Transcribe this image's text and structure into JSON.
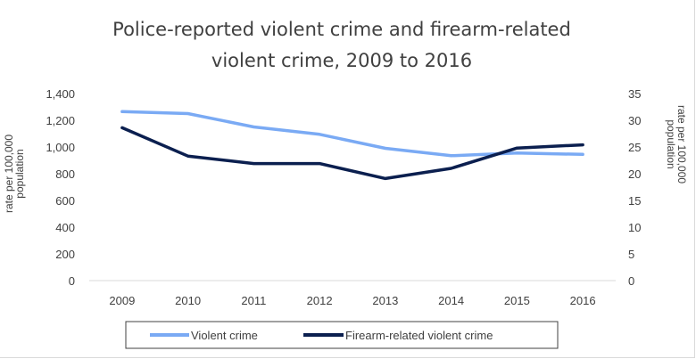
{
  "chart_data": {
    "type": "line",
    "title_lines": [
      "Police-reported violent crime and firearm-related",
      "violent crime, 2009 to 2016"
    ],
    "categories": [
      "2009",
      "2010",
      "2011",
      "2012",
      "2013",
      "2014",
      "2015",
      "2016"
    ],
    "y_left": {
      "label_lines": [
        "rate per 100,000",
        "population"
      ],
      "ticks": [
        "0",
        "200",
        "400",
        "600",
        "800",
        "1,000",
        "1,200",
        "1,400"
      ],
      "ylim": [
        0,
        1400
      ]
    },
    "y_right": {
      "label_lines": [
        "rate per 100,000",
        "population"
      ],
      "ticks": [
        "0",
        "5",
        "10",
        "15",
        "20",
        "25",
        "30",
        "35"
      ],
      "ylim": [
        0,
        35
      ]
    },
    "series": [
      {
        "name": "Violent crime",
        "axis": "left",
        "color": "#7aaaf4",
        "values": [
          1265,
          1250,
          1150,
          1095,
          990,
          935,
          955,
          945
        ]
      },
      {
        "name": "Firearm-related violent crime",
        "axis": "right",
        "color": "#0b1f4f",
        "values": [
          28.6,
          23.3,
          21.9,
          21.9,
          19.1,
          21.0,
          24.8,
          25.4
        ]
      }
    ],
    "grid": false,
    "legend_position": "bottom"
  }
}
